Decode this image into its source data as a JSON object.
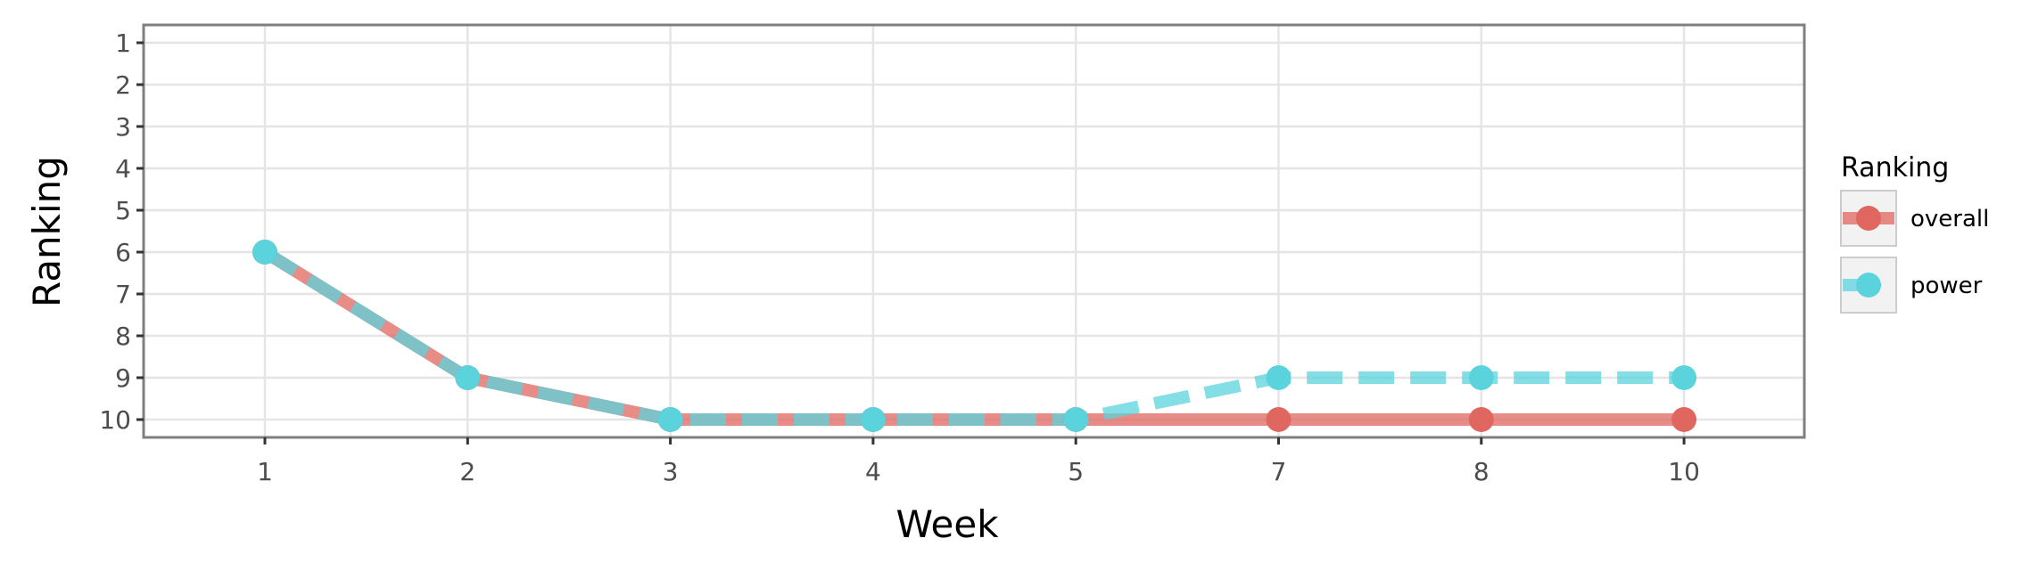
{
  "chart_data": {
    "type": "line",
    "xlabel": "Week",
    "ylabel": "Ranking",
    "categories": [
      "1",
      "2",
      "3",
      "4",
      "5",
      "7",
      "8",
      "10"
    ],
    "y_ticks": [
      "1",
      "2",
      "3",
      "4",
      "5",
      "6",
      "7",
      "8",
      "9",
      "10"
    ],
    "ylim": [
      1,
      10
    ],
    "y_reversed": true,
    "grid": true,
    "legend": {
      "title": "Ranking",
      "placement": "right"
    },
    "series": [
      {
        "name": "overall",
        "color": "#e06660",
        "line_style": "solid",
        "values": [
          6,
          9,
          10,
          10,
          10,
          10,
          10,
          10
        ]
      },
      {
        "name": "power",
        "color": "#5bd3dc",
        "line_style": "dashed",
        "values": [
          6,
          9,
          10,
          10,
          10,
          9,
          9,
          9
        ]
      }
    ]
  }
}
